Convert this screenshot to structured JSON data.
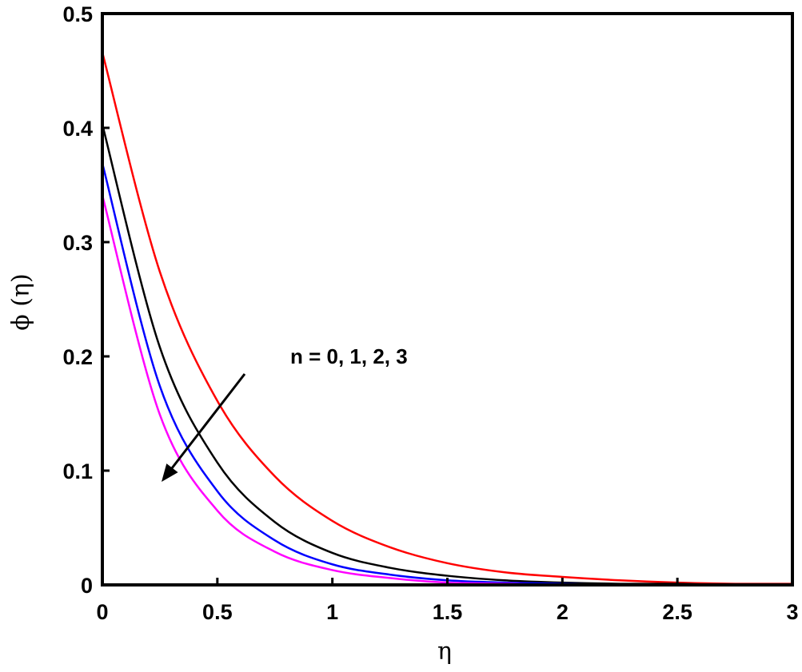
{
  "chart_data": {
    "type": "line",
    "title": "",
    "xlabel": "η",
    "ylabel": "ϕ (η)",
    "xlim": [
      0,
      3
    ],
    "ylim": [
      0,
      0.5
    ],
    "xticks": [
      "0",
      "0.5",
      "1",
      "1.5",
      "2",
      "2.5",
      "3"
    ],
    "yticks": [
      "0",
      "0.1",
      "0.2",
      "0.3",
      "0.4",
      "0.5"
    ],
    "grid": false,
    "legend": null,
    "annotation": {
      "text": "n = 0, 1, 2, 3",
      "arrow": {
        "from": [
          0.62,
          0.185
        ],
        "to": [
          0.26,
          0.091
        ]
      }
    },
    "x": [
      0,
      0.25,
      0.5,
      0.75,
      1.0,
      1.25,
      1.5,
      1.75,
      2.0,
      2.25,
      2.5,
      2.75,
      3.0
    ],
    "series": [
      {
        "name": "n = 0",
        "color": "#ff0000",
        "values": [
          0.466,
          0.274,
          0.161,
          0.095,
          0.056,
          0.033,
          0.019,
          0.011,
          0.007,
          0.004,
          0.002,
          0.001,
          0.001
        ]
      },
      {
        "name": "n = 1",
        "color": "#000000",
        "values": [
          0.403,
          0.208,
          0.107,
          0.055,
          0.028,
          0.015,
          0.008,
          0.004,
          0.002,
          0.001,
          0.001,
          0.0,
          0.0
        ]
      },
      {
        "name": "n = 2",
        "color": "#0000ff",
        "values": [
          0.369,
          0.174,
          0.082,
          0.039,
          0.018,
          0.009,
          0.004,
          0.002,
          0.001,
          0.0,
          0.0,
          0.0,
          0.0
        ]
      },
      {
        "name": "n = 3",
        "color": "#ff00ff",
        "values": [
          0.341,
          0.149,
          0.065,
          0.029,
          0.013,
          0.006,
          0.002,
          0.001,
          0.0,
          0.0,
          0.0,
          0.0,
          0.0
        ]
      }
    ]
  }
}
